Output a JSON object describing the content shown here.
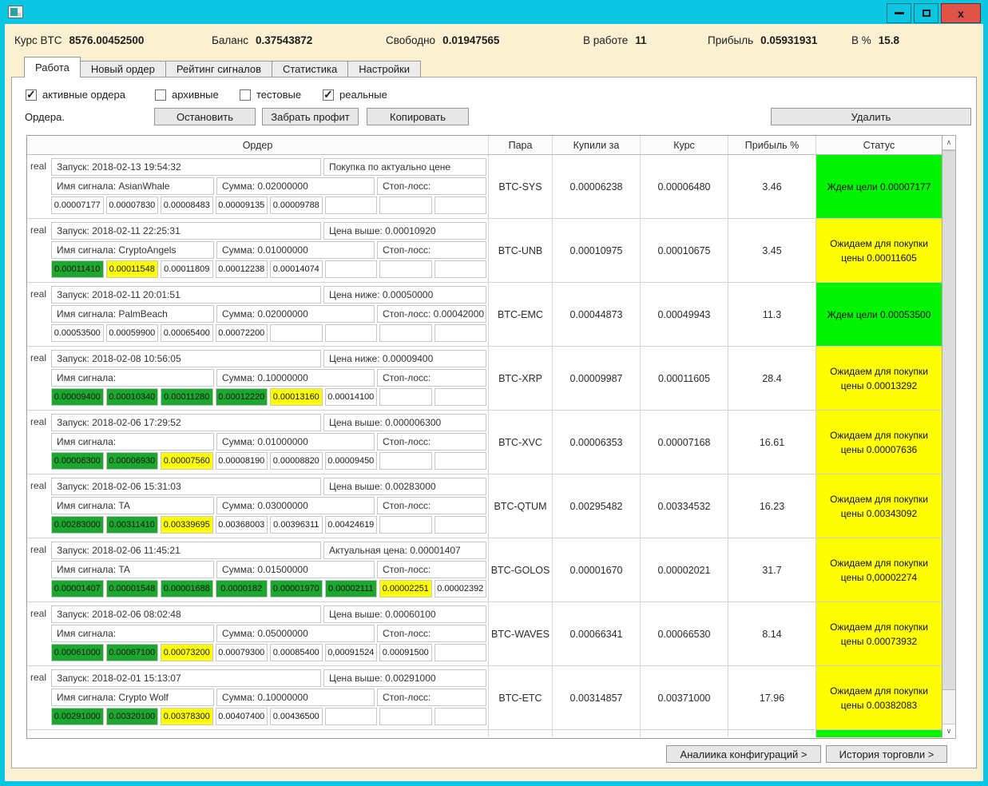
{
  "titlebar": {
    "minimize_label": "",
    "maximize_label": "",
    "close_label": "x"
  },
  "stats": [
    {
      "label": "Курс BTC",
      "value": "8576.00452500"
    },
    {
      "label": "Баланс",
      "value": "0.37543872"
    },
    {
      "label": "Свободно",
      "value": "0.01947565"
    },
    {
      "label": "В работе",
      "value": "11"
    },
    {
      "label": "Прибыль",
      "value": "0.05931931"
    },
    {
      "label": "В %",
      "value": "15.8"
    }
  ],
  "tabs": [
    {
      "label": "Работа",
      "active": true
    },
    {
      "label": "Новый ордер",
      "active": false
    },
    {
      "label": "Рейтинг сигналов",
      "active": false
    },
    {
      "label": "Статистика",
      "active": false
    },
    {
      "label": "Настройки",
      "active": false
    }
  ],
  "filters": [
    {
      "label": "активные ордера",
      "checked": true
    },
    {
      "label": "архивные",
      "checked": false
    },
    {
      "label": "тестовые",
      "checked": false
    },
    {
      "label": "реальные",
      "checked": true
    }
  ],
  "toolbar": {
    "orders_label": "Ордера.",
    "stop": "Остановить",
    "take_profit": "Забрать профит",
    "copy": "Копировать",
    "delete": "Удалить"
  },
  "footer": {
    "analytics": "Аналиика конфигураций  >",
    "history": "История торговли  >"
  },
  "colors": {
    "titlebar": "#0BC6E1",
    "window_background": "#FBF1D2",
    "close_button": "#DF5348",
    "status_green": "#00F300",
    "status_yellow": "#FFFF00",
    "target_green": "#1CA72F",
    "target_yellow": "#FFFF00"
  },
  "table": {
    "headers": {
      "order": "Ордер",
      "pair": "Пара",
      "bought": "Купили за",
      "rate": "Курс",
      "profit": "Прибыль %",
      "status": "Статус"
    },
    "rows": [
      {
        "type": "real",
        "launch": "Запуск: 2018-02-13 19:54:32",
        "condition": "Покупка по актуально цене",
        "signal": "Имя сигнала: AsianWhale",
        "amount": "Сумма: 0.02000000",
        "stoploss": "Стоп-лосс:",
        "targets": [
          {
            "v": "0.00007177",
            "c": "w"
          },
          {
            "v": "0.00007830",
            "c": "w"
          },
          {
            "v": "0.00008483",
            "c": "w"
          },
          {
            "v": "0.00009135",
            "c": "w"
          },
          {
            "v": "0.00009788",
            "c": "w"
          },
          {
            "v": "",
            "c": "w"
          },
          {
            "v": "",
            "c": "w"
          },
          {
            "v": "",
            "c": "w"
          }
        ],
        "pair": "BTC-SYS",
        "bought": "0.00006238",
        "rate": "0.00006480",
        "profit": "3.46",
        "status": {
          "text": "Ждем цели 0.00007177",
          "color": "green"
        }
      },
      {
        "type": "real",
        "launch": "Запуск: 2018-02-11 22:25:31",
        "condition": "Цена выше: 0.00010920",
        "signal": "Имя сигнала: CryptoAngels",
        "amount": "Сумма: 0.01000000",
        "stoploss": "Стоп-лосс:",
        "targets": [
          {
            "v": "0.00011410",
            "c": "g"
          },
          {
            "v": "0.00011548",
            "c": "y"
          },
          {
            "v": "0.00011809",
            "c": "w"
          },
          {
            "v": "0.00012238",
            "c": "w"
          },
          {
            "v": "0.00014074",
            "c": "w"
          },
          {
            "v": "",
            "c": "w"
          },
          {
            "v": "",
            "c": "w"
          },
          {
            "v": "",
            "c": "w"
          }
        ],
        "pair": "BTC-UNB",
        "bought": "0.00010975",
        "rate": "0.00010675",
        "profit": "3.45",
        "status": {
          "text": "Ожидаем для покупки цены 0.00011605",
          "color": "yellow"
        }
      },
      {
        "type": "real",
        "launch": "Запуск: 2018-02-11 20:01:51",
        "condition": "Цена ниже: 0.00050000",
        "signal": "Имя сигнала: PalmBeach",
        "amount": "Сумма: 0.02000000",
        "stoploss": "Стоп-лосс: 0.00042000",
        "targets": [
          {
            "v": "0.00053500",
            "c": "w"
          },
          {
            "v": "0.00059900",
            "c": "w"
          },
          {
            "v": "0.00065400",
            "c": "w"
          },
          {
            "v": "0.00072200",
            "c": "w"
          },
          {
            "v": "",
            "c": "w"
          },
          {
            "v": "",
            "c": "w"
          },
          {
            "v": "",
            "c": "w"
          },
          {
            "v": "",
            "c": "w"
          }
        ],
        "pair": "BTC-EMC",
        "bought": "0.00044873",
        "rate": "0.00049943",
        "profit": "11.3",
        "status": {
          "text": "Ждем цели 0.00053500",
          "color": "green"
        }
      },
      {
        "type": "real",
        "launch": "Запуск: 2018-02-08 10:56:05",
        "condition": "Цена ниже: 0.00009400",
        "signal": "Имя сигнала:",
        "amount": "Сумма: 0.10000000",
        "stoploss": "Стоп-лосс:",
        "targets": [
          {
            "v": "0.00009400",
            "c": "g"
          },
          {
            "v": "0.00010340",
            "c": "g"
          },
          {
            "v": "0.00011280",
            "c": "g"
          },
          {
            "v": "0.00012220",
            "c": "g"
          },
          {
            "v": "0.00013160",
            "c": "y"
          },
          {
            "v": "0.00014100",
            "c": "w"
          },
          {
            "v": "",
            "c": "w"
          },
          {
            "v": "",
            "c": "w"
          }
        ],
        "pair": "BTC-XRP",
        "bought": "0.00009987",
        "rate": "0.00011605",
        "profit": "28.4",
        "status": {
          "text": "Ожидаем для покупки цены 0.00013292",
          "color": "yellow"
        }
      },
      {
        "type": "real",
        "launch": "Запуск: 2018-02-06 17:29:52",
        "condition": "Цена выше: 0.000006300",
        "signal": "Имя сигнала:",
        "amount": "Сумма: 0.01000000",
        "stoploss": "Стоп-лосс:",
        "targets": [
          {
            "v": "0.00006300",
            "c": "g"
          },
          {
            "v": "0.00006930",
            "c": "g"
          },
          {
            "v": "0.00007560",
            "c": "y"
          },
          {
            "v": "0.00008190",
            "c": "w"
          },
          {
            "v": "0.00008820",
            "c": "w"
          },
          {
            "v": "0.00009450",
            "c": "w"
          },
          {
            "v": "",
            "c": "w"
          },
          {
            "v": "",
            "c": "w"
          }
        ],
        "pair": "BTC-XVC",
        "bought": "0.00006353",
        "rate": "0.00007168",
        "profit": "16.61",
        "status": {
          "text": "Ожидаем для покупки цены 0.00007636",
          "color": "yellow"
        }
      },
      {
        "type": "real",
        "launch": "Запуск: 2018-02-06 15:31:03",
        "condition": "Цена выше: 0.00283000",
        "signal": "Имя сигнала: TA",
        "amount": "Сумма: 0.03000000",
        "stoploss": "Стоп-лосс:",
        "targets": [
          {
            "v": "0.00283000",
            "c": "g"
          },
          {
            "v": "0.00311410",
            "c": "g"
          },
          {
            "v": "0.00339695",
            "c": "y"
          },
          {
            "v": "0.00368003",
            "c": "w"
          },
          {
            "v": "0.00396311",
            "c": "w"
          },
          {
            "v": "0.00424619",
            "c": "w"
          },
          {
            "v": "",
            "c": "w"
          },
          {
            "v": "",
            "c": "w"
          }
        ],
        "pair": "BTC-QTUM",
        "bought": "0.00295482",
        "rate": "0.00334532",
        "profit": "16.23",
        "status": {
          "text": "Ожидаем для покупки цены 0.00343092",
          "color": "yellow"
        }
      },
      {
        "type": "real",
        "launch": "Запуск: 2018-02-06 11:45:21",
        "condition": "Актуальная цена: 0.00001407",
        "signal": "Имя сигнала: TA",
        "amount": "Сумма: 0.01500000",
        "stoploss": "Стоп-лосс:",
        "targets": [
          {
            "v": "0.00001407",
            "c": "g"
          },
          {
            "v": "0.00001548",
            "c": "g"
          },
          {
            "v": "0.00001688",
            "c": "g"
          },
          {
            "v": "0.0000182",
            "c": "g"
          },
          {
            "v": "0.00001970",
            "c": "g"
          },
          {
            "v": "0.00002111",
            "c": "g"
          },
          {
            "v": "0.00002251",
            "c": "y"
          },
          {
            "v": "0.00002392",
            "c": "w"
          }
        ],
        "pair": "BTC-GOLOS",
        "bought": "0.00001670",
        "rate": "0.00002021",
        "profit": "31.7",
        "status": {
          "text": "Ожидаем для покупки цены 0,00002274",
          "color": "yellow"
        }
      },
      {
        "type": "real",
        "launch": "Запуск: 2018-02-06 08:02:48",
        "condition": "Цена выше: 0.00060100",
        "signal": "Имя сигнала:",
        "amount": "Сумма: 0.05000000",
        "stoploss": "Стоп-лосс:",
        "targets": [
          {
            "v": "0.00061000",
            "c": "g"
          },
          {
            "v": "0.00067100",
            "c": "g"
          },
          {
            "v": "0.00073200",
            "c": "y"
          },
          {
            "v": "0.00079300",
            "c": "w"
          },
          {
            "v": "0.00085400",
            "c": "w"
          },
          {
            "v": "0,00091524",
            "c": "w"
          },
          {
            "v": "0.00091500",
            "c": "w"
          },
          {
            "v": "",
            "c": "w"
          }
        ],
        "pair": "BTC-WAVES",
        "bought": "0.00066341",
        "rate": "0.00066530",
        "profit": "8.14",
        "status": {
          "text": "Ожидаем для покупки цены 0.00073932",
          "color": "yellow"
        }
      },
      {
        "type": "real",
        "launch": "Запуск: 2018-02-01 15:13:07",
        "condition": "Цена выше: 0.00291000",
        "signal": "Имя сигнала: Crypto Wolf",
        "amount": "Сумма: 0.10000000",
        "stoploss": "Стоп-лосс:",
        "targets": [
          {
            "v": "0.00291000",
            "c": "g"
          },
          {
            "v": "0.00320100",
            "c": "g"
          },
          {
            "v": "0.00378300",
            "c": "y"
          },
          {
            "v": "0.00407400",
            "c": "w"
          },
          {
            "v": "0.00436500",
            "c": "w"
          },
          {
            "v": "",
            "c": "w"
          },
          {
            "v": "",
            "c": "w"
          },
          {
            "v": "",
            "c": "w"
          }
        ],
        "pair": "BTC-ETC",
        "bought": "0.00314857",
        "rate": "0.00371000",
        "profit": "17.96",
        "status": {
          "text": "Ожидаем для покупки цены 0.00382083",
          "color": "yellow"
        }
      }
    ]
  }
}
